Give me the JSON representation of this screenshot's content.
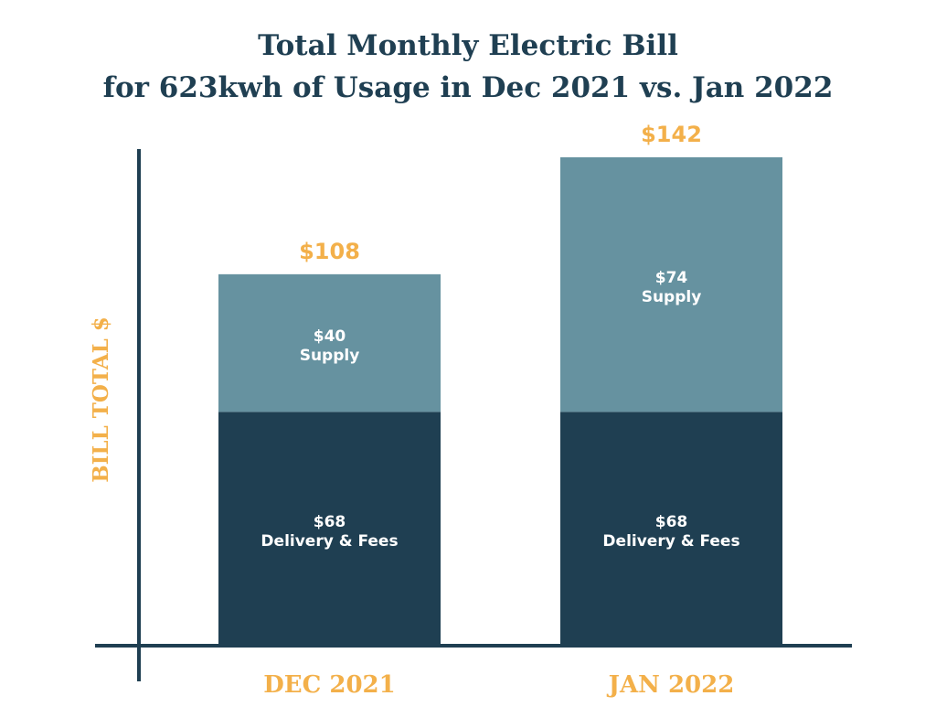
{
  "chart_data": {
    "type": "bar",
    "stacked": true,
    "title": "Total Monthly Electric Bill",
    "subtitle": "for 623kwh of Usage in Dec 2021 vs. Jan 2022",
    "xlabel": "",
    "ylabel": "BILL TOTAL $",
    "categories": [
      "DEC 2021",
      "JAN 2022"
    ],
    "series": [
      {
        "name": "Delivery & Fees",
        "values": [
          68,
          68
        ],
        "value_labels": [
          "$68",
          "$68"
        ],
        "color": "#1f3f52"
      },
      {
        "name": "Supply",
        "values": [
          40,
          74
        ],
        "value_labels": [
          "$40",
          "$74"
        ],
        "color": "#6692a0"
      }
    ],
    "totals": [
      108,
      142
    ],
    "total_labels": [
      "$108",
      "$142"
    ],
    "ylim": [
      0,
      142
    ],
    "grid": false,
    "legend": "none",
    "colors": {
      "title": "#1f3f52",
      "accent": "#f3b04a",
      "axis": "#1f3f52",
      "segment_text": "#ffffff"
    }
  }
}
